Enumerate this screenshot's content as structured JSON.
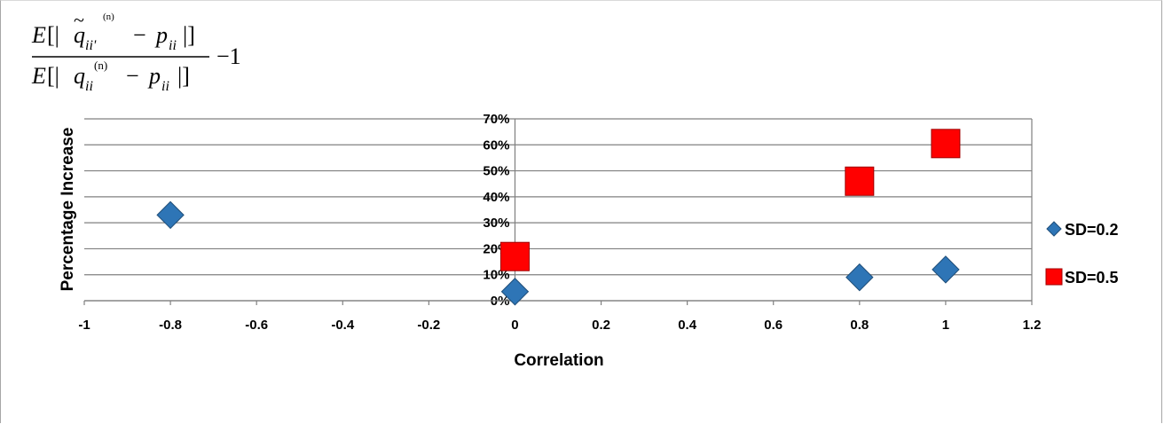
{
  "chart_data": {
    "type": "scatter",
    "xlabel": "Correlation",
    "ylabel": "Percentage Increase",
    "xlim": [
      -1,
      1.2
    ],
    "ylim": [
      0,
      0.7
    ],
    "x_ticks": [
      -1,
      -0.8,
      -0.6,
      -0.4,
      -0.2,
      0,
      0.2,
      0.4,
      0.6,
      0.8,
      1,
      1.2
    ],
    "x_tick_labels": [
      "-1",
      "-0.8",
      "-0.6",
      "-0.4",
      "-0.2",
      "0",
      "0.2",
      "0.4",
      "0.6",
      "0.8",
      "1",
      "1.2"
    ],
    "y_ticks": [
      0,
      0.1,
      0.2,
      0.3,
      0.4,
      0.5,
      0.6,
      0.7
    ],
    "y_tick_labels": [
      "0%",
      "10%",
      "20%",
      "30%",
      "40%",
      "50%",
      "60%",
      "70%"
    ],
    "grid": "horizontal",
    "legend_position": "right",
    "series": [
      {
        "name": "SD=0.2",
        "marker": "diamond",
        "color": "#2e75b6",
        "x": [
          -0.8,
          0,
          0.8,
          1
        ],
        "y": [
          0.33,
          0.035,
          0.09,
          0.12
        ]
      },
      {
        "name": "SD=0.5",
        "marker": "square",
        "color": "#ff0000",
        "x": [
          0,
          0.8,
          1
        ],
        "y": [
          0.17,
          0.46,
          0.605
        ]
      }
    ],
    "annotation_formula": {
      "numerator": "E[| q̃ii' (n) − pii |]",
      "denominator": "E[| qii (n) − pii |]",
      "suffix": "−1"
    }
  }
}
